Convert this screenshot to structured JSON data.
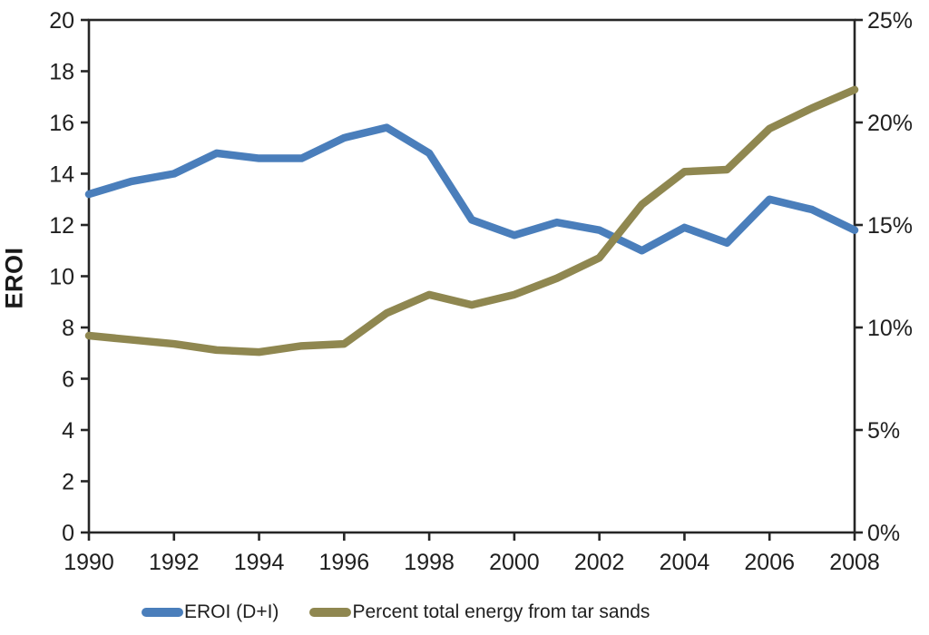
{
  "chart_data": {
    "type": "line",
    "title": "",
    "x": [
      1990,
      1991,
      1992,
      1993,
      1994,
      1995,
      1996,
      1997,
      1998,
      1999,
      2000,
      2001,
      2002,
      2003,
      2004,
      2005,
      2006,
      2007,
      2008
    ],
    "series": [
      {
        "name": "EROI (D+I)",
        "axis": "left",
        "color": "#4A7EBB",
        "values": [
          13.2,
          13.7,
          14.0,
          14.8,
          14.6,
          14.6,
          15.4,
          15.8,
          14.8,
          12.2,
          11.6,
          12.1,
          11.8,
          11.0,
          11.9,
          11.3,
          13.0,
          12.6,
          11.8
        ]
      },
      {
        "name": "Percent total energy from tar sands",
        "axis": "right",
        "color": "#8F8750",
        "values": [
          9.6,
          9.4,
          9.2,
          8.9,
          8.8,
          9.1,
          9.2,
          10.7,
          11.6,
          11.1,
          11.6,
          12.4,
          13.4,
          16.0,
          17.6,
          17.7,
          19.7,
          20.7,
          21.6
        ]
      }
    ],
    "left_axis": {
      "label": "EROI",
      "min": 0,
      "max": 20,
      "tick_step": 2,
      "tick_labels": [
        "0",
        "2",
        "4",
        "6",
        "8",
        "10",
        "12",
        "14",
        "16",
        "18",
        "20"
      ]
    },
    "right_axis": {
      "label": "",
      "min": 0,
      "max": 25,
      "tick_step": 5,
      "tick_labels": [
        "0%",
        "5%",
        "10%",
        "15%",
        "20%",
        "25%"
      ]
    },
    "x_axis": {
      "label": "",
      "min": 1990,
      "max": 2008,
      "tick_labels": [
        "1990",
        "1992",
        "1994",
        "1996",
        "1998",
        "2000",
        "2002",
        "2004",
        "2006",
        "2008"
      ]
    },
    "grid": false,
    "legend_position": "bottom",
    "axis_color": "#262626"
  },
  "legend": {
    "items": [
      {
        "label": "EROI (D+I)",
        "color": "#4A7EBB"
      },
      {
        "label": "Percent total energy from tar sands",
        "color": "#8F8750"
      }
    ]
  }
}
